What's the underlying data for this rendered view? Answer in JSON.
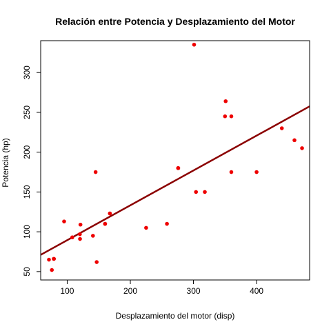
{
  "chart_data": {
    "type": "scatter",
    "title": "Relación entre Potencia y Desplazamiento del Motor",
    "xlabel": "Desplazamiento del motor (disp)",
    "ylabel": "Potencia (hp)",
    "xlim": [
      58,
      484
    ],
    "ylim": [
      39.5,
      340
    ],
    "x_ticks": [
      100,
      200,
      300,
      400
    ],
    "y_ticks": [
      50,
      100,
      150,
      200,
      250,
      300
    ],
    "grid": false,
    "points": [
      {
        "x": 160,
        "y": 110
      },
      {
        "x": 160,
        "y": 110
      },
      {
        "x": 108,
        "y": 93
      },
      {
        "x": 258,
        "y": 110
      },
      {
        "x": 360,
        "y": 175
      },
      {
        "x": 225,
        "y": 105
      },
      {
        "x": 360,
        "y": 245
      },
      {
        "x": 146.7,
        "y": 62
      },
      {
        "x": 140.8,
        "y": 95
      },
      {
        "x": 167.6,
        "y": 123
      },
      {
        "x": 167.6,
        "y": 123
      },
      {
        "x": 275.8,
        "y": 180
      },
      {
        "x": 275.8,
        "y": 180
      },
      {
        "x": 275.8,
        "y": 180
      },
      {
        "x": 472,
        "y": 205
      },
      {
        "x": 460,
        "y": 215
      },
      {
        "x": 440,
        "y": 230
      },
      {
        "x": 78.7,
        "y": 66
      },
      {
        "x": 75.7,
        "y": 52
      },
      {
        "x": 71.1,
        "y": 65
      },
      {
        "x": 120.1,
        "y": 97
      },
      {
        "x": 318,
        "y": 150
      },
      {
        "x": 304,
        "y": 150
      },
      {
        "x": 350,
        "y": 245
      },
      {
        "x": 400,
        "y": 175
      },
      {
        "x": 79,
        "y": 66
      },
      {
        "x": 120.3,
        "y": 91
      },
      {
        "x": 95.1,
        "y": 113
      },
      {
        "x": 351,
        "y": 264
      },
      {
        "x": 145,
        "y": 175
      },
      {
        "x": 301,
        "y": 335
      },
      {
        "x": 121,
        "y": 109
      }
    ],
    "regression_line": {
      "intercept": 45.73,
      "slope": 0.4376
    },
    "point_color": "#ee0000",
    "line_color": "#8b0000"
  }
}
